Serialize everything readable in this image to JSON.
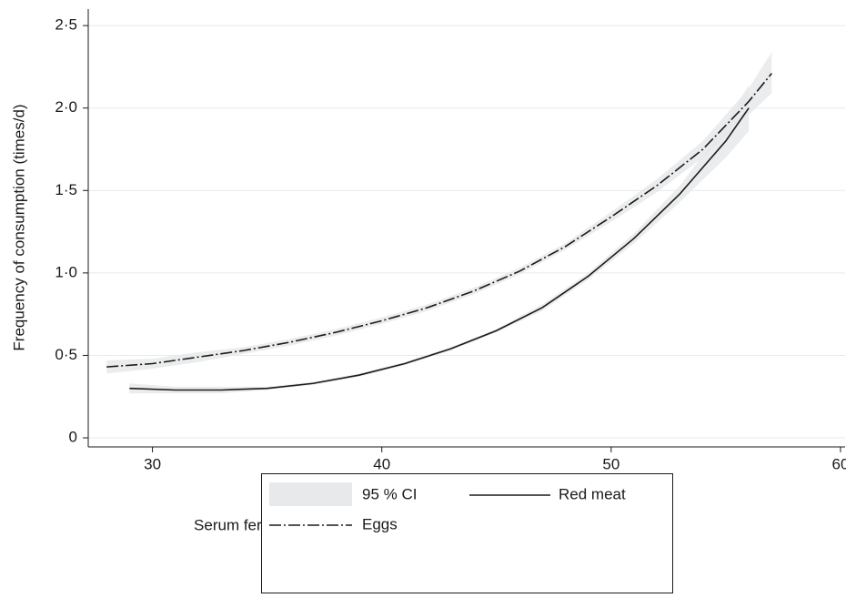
{
  "chart_data": {
    "type": "line",
    "x_label": "Serum ferritin (µg/l) – values adjusted based on linear regression",
    "y_label": "Frequency of consumption (times/d)",
    "ci_label": "95 % CI",
    "ci_color": "#e8e9ea",
    "xlim": [
      27.2,
      60.2
    ],
    "xticks": [
      30,
      40,
      50,
      60
    ],
    "ylim": [
      -0.055,
      2.6
    ],
    "yticks": [
      0,
      {
        "value": 0.5,
        "label": "0·5"
      },
      {
        "value": 1.0,
        "label": "1·0"
      },
      {
        "value": 1.5,
        "label": "1·5"
      },
      {
        "value": 2.0,
        "label": "2·0"
      },
      {
        "value": 2.5,
        "label": "2·5"
      }
    ],
    "grid": true,
    "series": [
      {
        "name": "Red meat",
        "color": "#1a1a1a",
        "dash": "solid",
        "x": [
          29,
          31,
          33,
          35,
          37,
          39,
          41,
          43,
          45,
          47,
          49,
          51,
          53,
          55,
          56
        ],
        "values": [
          0.3,
          0.29,
          0.29,
          0.3,
          0.33,
          0.38,
          0.45,
          0.54,
          0.65,
          0.79,
          0.98,
          1.21,
          1.48,
          1.8,
          2.0
        ],
        "lower": [
          0.27,
          0.27,
          0.27,
          0.29,
          0.32,
          0.37,
          0.44,
          0.53,
          0.64,
          0.77,
          0.96,
          1.18,
          1.43,
          1.7,
          1.86
        ],
        "upper": [
          0.33,
          0.31,
          0.31,
          0.31,
          0.34,
          0.39,
          0.46,
          0.55,
          0.66,
          0.81,
          1.0,
          1.24,
          1.53,
          1.9,
          2.14
        ]
      },
      {
        "name": "Eggs",
        "color": "#1a1a1a",
        "dash": "dashdot",
        "x": [
          28,
          30,
          32,
          34,
          36,
          38,
          40,
          42,
          44,
          46,
          48,
          50,
          52,
          54,
          56,
          57
        ],
        "values": [
          0.43,
          0.45,
          0.49,
          0.53,
          0.58,
          0.64,
          0.71,
          0.79,
          0.89,
          1.01,
          1.16,
          1.34,
          1.53,
          1.75,
          2.04,
          2.21
        ],
        "lower": [
          0.39,
          0.42,
          0.46,
          0.51,
          0.56,
          0.62,
          0.69,
          0.77,
          0.87,
          0.99,
          1.14,
          1.31,
          1.49,
          1.7,
          1.96,
          2.09
        ],
        "upper": [
          0.47,
          0.48,
          0.52,
          0.55,
          0.6,
          0.66,
          0.73,
          0.81,
          0.91,
          1.03,
          1.18,
          1.37,
          1.57,
          1.8,
          2.12,
          2.34
        ]
      }
    ]
  }
}
